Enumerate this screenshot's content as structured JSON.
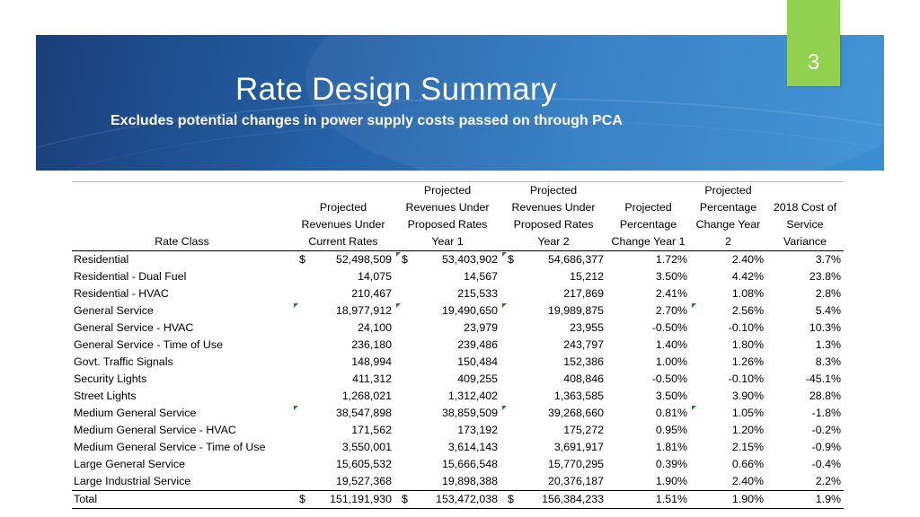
{
  "slide": {
    "number": "3",
    "title": "Rate Design Summary",
    "subtitle": "Excludes potential changes in power supply costs passed on through PCA"
  },
  "table": {
    "headers": [
      "Rate Class",
      "Projected\nRevenues Under\nCurrent Rates",
      "Projected\nRevenues Under\nProposed Rates\nYear 1",
      "Projected\nRevenues Under\nProposed Rates\nYear 2",
      "Projected\nPercentage\nChange Year 1",
      "Projected\nPercentage\nChange Year\n2",
      "2018 Cost of\nService Variance"
    ],
    "currency_symbol": "$",
    "rows": [
      {
        "rate_class": "Residential",
        "current": "52,498,509",
        "year1": "53,403,902",
        "year2": "54,686,377",
        "pct1": "1.72%",
        "pct2": "2.40%",
        "variance": "3.7%"
      },
      {
        "rate_class": "Residential - Dual Fuel",
        "current": "14,075",
        "year1": "14,567",
        "year2": "15,212",
        "pct1": "3.50%",
        "pct2": "4.42%",
        "variance": "23.8%"
      },
      {
        "rate_class": "Residential - HVAC",
        "current": "210,467",
        "year1": "215,533",
        "year2": "217,869",
        "pct1": "2.41%",
        "pct2": "1.08%",
        "variance": "2.8%"
      },
      {
        "rate_class": "General Service",
        "current": "18,977,912",
        "year1": "19,490,650",
        "year2": "19,989,875",
        "pct1": "2.70%",
        "pct2": "2.56%",
        "variance": "5.4%"
      },
      {
        "rate_class": "General Service - HVAC",
        "current": "24,100",
        "year1": "23,979",
        "year2": "23,955",
        "pct1": "-0.50%",
        "pct2": "-0.10%",
        "variance": "10.3%"
      },
      {
        "rate_class": "General Service - Time of Use",
        "current": "236,180",
        "year1": "239,486",
        "year2": "243,797",
        "pct1": "1.40%",
        "pct2": "1.80%",
        "variance": "1.3%"
      },
      {
        "rate_class": "Govt. Traffic Signals",
        "current": "148,994",
        "year1": "150,484",
        "year2": "152,386",
        "pct1": "1.00%",
        "pct2": "1.26%",
        "variance": "8.3%"
      },
      {
        "rate_class": "Security Lights",
        "current": "411,312",
        "year1": "409,255",
        "year2": "408,846",
        "pct1": "-0.50%",
        "pct2": "-0.10%",
        "variance": "-45.1%"
      },
      {
        "rate_class": "Street Lights",
        "current": "1,268,021",
        "year1": "1,312,402",
        "year2": "1,363,585",
        "pct1": "3.50%",
        "pct2": "3.90%",
        "variance": "28.8%"
      },
      {
        "rate_class": "Medium General Service",
        "current": "38,547,898",
        "year1": "38,859,509",
        "year2": "39,268,660",
        "pct1": "0.81%",
        "pct2": "1.05%",
        "variance": "-1.8%"
      },
      {
        "rate_class": "Medium General Service - HVAC",
        "current": "171,562",
        "year1": "173,192",
        "year2": "175,272",
        "pct1": "0.95%",
        "pct2": "1.20%",
        "variance": "-0.2%"
      },
      {
        "rate_class": "Medium General Service - Time of Use",
        "current": "3,550,001",
        "year1": "3,614,143",
        "year2": "3,691,917",
        "pct1": "1.81%",
        "pct2": "2.15%",
        "variance": "-0.9%"
      },
      {
        "rate_class": "Large General Service",
        "current": "15,605,532",
        "year1": "15,666,548",
        "year2": "15,770,295",
        "pct1": "0.39%",
        "pct2": "0.66%",
        "variance": "-0.4%"
      },
      {
        "rate_class": "Large Industrial Service",
        "current": "19,527,368",
        "year1": "19,898,388",
        "year2": "20,376,187",
        "pct1": "1.90%",
        "pct2": "2.40%",
        "variance": "2.2%"
      },
      {
        "rate_class": "Total",
        "current": "151,191,930",
        "year1": "153,472,038",
        "year2": "156,384,233",
        "pct1": "1.51%",
        "pct2": "1.90%",
        "variance": "1.9%"
      }
    ]
  },
  "colors": {
    "banner": "#2560a6",
    "tab": "#92d050",
    "indicator": "#2e7d32"
  }
}
